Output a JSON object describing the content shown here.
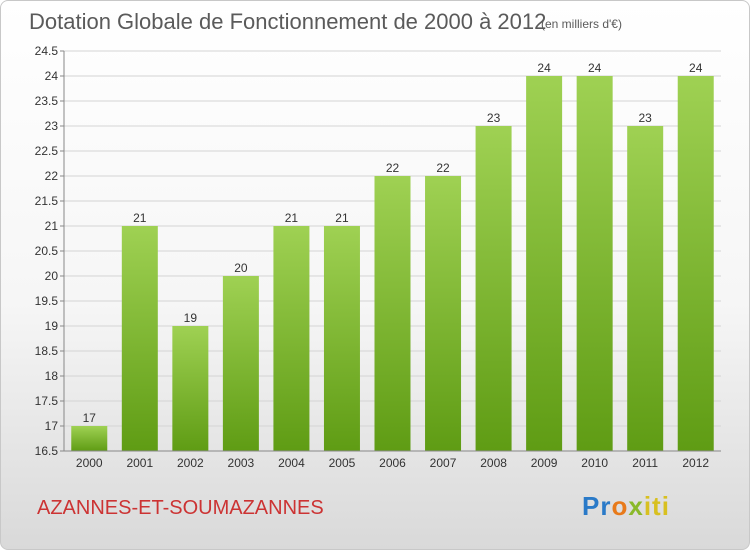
{
  "header": {
    "title": "Dotation Globale de Fonctionnement de 2000 à 2012",
    "subtitle": "(en milliers d'€)"
  },
  "footer": {
    "commune": "AZANNES-ET-SOUMAZANNES",
    "logo_parts": [
      "Pr",
      "o",
      "x",
      "iti"
    ]
  },
  "colors": {
    "bar_top": "#9fd153",
    "bar_bottom": "#5f9c14",
    "commune_text": "#cc3333",
    "title_text": "#5a5a5a"
  },
  "chart_data": {
    "type": "bar",
    "title": "Dotation Globale de Fonctionnement de 2000 à 2012",
    "categories": [
      "2000",
      "2001",
      "2002",
      "2003",
      "2004",
      "2005",
      "2006",
      "2007",
      "2008",
      "2009",
      "2010",
      "2011",
      "2012"
    ],
    "values": [
      17,
      21,
      19,
      20,
      21,
      21,
      22,
      22,
      23,
      24,
      24,
      23,
      24
    ],
    "data_labels": [
      "17",
      "21",
      "19",
      "20",
      "21",
      "21",
      "22",
      "22",
      "23",
      "24",
      "24",
      "23",
      "24"
    ],
    "ylim": [
      16.5,
      24.5
    ],
    "yticks": [
      "16.5",
      "17",
      "17.5",
      "18",
      "18.5",
      "19",
      "19.5",
      "20",
      "20.5",
      "21",
      "21.5",
      "22",
      "22.5",
      "23",
      "23.5",
      "24",
      "24.5"
    ],
    "xlabel": "",
    "ylabel": "",
    "grid": true
  }
}
